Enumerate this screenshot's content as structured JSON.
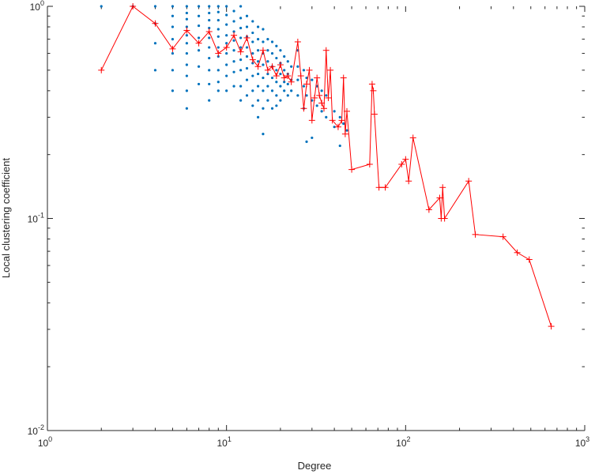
{
  "chart_data": {
    "type": "scatter",
    "xlabel": "Degree",
    "ylabel": "Local clustering coefficient",
    "xscale": "log",
    "yscale": "log",
    "xlim": [
      1,
      1000
    ],
    "ylim": [
      0.01,
      1
    ],
    "grid": false,
    "xticks": [
      {
        "base": "10",
        "exp": "0",
        "value": 1
      },
      {
        "base": "10",
        "exp": "1",
        "value": 10
      },
      {
        "base": "10",
        "exp": "2",
        "value": 100
      },
      {
        "base": "10",
        "exp": "3",
        "value": 1000
      }
    ],
    "yticks": [
      {
        "base": "10",
        "exp": "-2",
        "value": 0.01
      },
      {
        "base": "10",
        "exp": "-1",
        "value": 0.1
      },
      {
        "base": "10",
        "exp": "0",
        "value": 1
      }
    ],
    "colors": {
      "points": "#0072bd",
      "average": "#ff0000",
      "axis": "#262626"
    },
    "series": [
      {
        "marker": "dot",
        "points": [
          [
            2,
            1
          ],
          [
            3,
            1
          ],
          [
            4,
            1
          ],
          [
            4,
            0.83
          ],
          [
            4,
            0.67
          ],
          [
            4,
            0.5
          ],
          [
            5,
            1
          ],
          [
            5,
            0.9
          ],
          [
            5,
            0.8
          ],
          [
            5,
            0.7
          ],
          [
            5,
            0.6
          ],
          [
            5,
            0.5
          ],
          [
            5,
            0.4
          ],
          [
            6,
            1
          ],
          [
            6,
            0.93
          ],
          [
            6,
            0.87
          ],
          [
            6,
            0.8
          ],
          [
            6,
            0.73
          ],
          [
            6,
            0.67
          ],
          [
            6,
            0.6
          ],
          [
            6,
            0.53
          ],
          [
            6,
            0.47
          ],
          [
            6,
            0.4
          ],
          [
            6,
            0.33
          ],
          [
            7,
            1
          ],
          [
            7,
            0.9
          ],
          [
            7,
            0.81
          ],
          [
            7,
            0.71
          ],
          [
            7,
            0.62
          ],
          [
            7,
            0.52
          ],
          [
            7,
            0.43
          ],
          [
            8,
            1
          ],
          [
            8,
            0.93
          ],
          [
            8,
            0.86
          ],
          [
            8,
            0.79
          ],
          [
            8,
            0.71
          ],
          [
            8,
            0.64
          ],
          [
            8,
            0.57
          ],
          [
            8,
            0.5
          ],
          [
            8,
            0.43
          ],
          [
            8,
            0.36
          ],
          [
            9,
            1
          ],
          [
            9,
            0.94
          ],
          [
            9,
            0.86
          ],
          [
            9,
            0.78
          ],
          [
            9,
            0.72
          ],
          [
            9,
            0.64
          ],
          [
            9,
            0.58
          ],
          [
            9,
            0.5
          ],
          [
            9,
            0.44
          ],
          [
            9,
            0.4
          ],
          [
            10,
            1
          ],
          [
            10,
            0.91
          ],
          [
            10,
            0.82
          ],
          [
            10,
            0.73
          ],
          [
            10,
            0.67
          ],
          [
            10,
            0.6
          ],
          [
            10,
            0.53
          ],
          [
            10,
            0.47
          ],
          [
            10,
            0.4
          ],
          [
            11,
            0.95
          ],
          [
            11,
            0.85
          ],
          [
            11,
            0.76
          ],
          [
            11,
            0.69
          ],
          [
            11,
            0.62
          ],
          [
            11,
            0.55
          ],
          [
            11,
            0.49
          ],
          [
            11,
            0.42
          ],
          [
            12,
            1
          ],
          [
            12,
            0.88
          ],
          [
            12,
            0.79
          ],
          [
            12,
            0.71
          ],
          [
            12,
            0.64
          ],
          [
            12,
            0.56
          ],
          [
            12,
            0.5
          ],
          [
            12,
            0.42
          ],
          [
            12,
            0.36
          ],
          [
            13,
            0.9
          ],
          [
            13,
            0.8
          ],
          [
            13,
            0.72
          ],
          [
            13,
            0.64
          ],
          [
            13,
            0.58
          ],
          [
            13,
            0.51
          ],
          [
            13,
            0.45
          ],
          [
            13,
            0.38
          ],
          [
            14,
            0.85
          ],
          [
            14,
            0.75
          ],
          [
            14,
            0.68
          ],
          [
            14,
            0.6
          ],
          [
            14,
            0.54
          ],
          [
            14,
            0.47
          ],
          [
            14,
            0.4
          ],
          [
            14,
            0.34
          ],
          [
            15,
            0.8
          ],
          [
            15,
            0.7
          ],
          [
            15,
            0.62
          ],
          [
            15,
            0.55
          ],
          [
            15,
            0.48
          ],
          [
            15,
            0.42
          ],
          [
            15,
            0.36
          ],
          [
            15,
            0.3
          ],
          [
            16,
            0.78
          ],
          [
            16,
            0.68
          ],
          [
            16,
            0.6
          ],
          [
            16,
            0.53
          ],
          [
            16,
            0.46
          ],
          [
            16,
            0.4
          ],
          [
            16,
            0.33
          ],
          [
            16,
            0.25
          ],
          [
            17,
            0.7
          ],
          [
            17,
            0.62
          ],
          [
            17,
            0.55
          ],
          [
            17,
            0.48
          ],
          [
            17,
            0.42
          ],
          [
            17,
            0.36
          ],
          [
            18,
            0.68
          ],
          [
            18,
            0.6
          ],
          [
            18,
            0.52
          ],
          [
            18,
            0.46
          ],
          [
            18,
            0.4
          ],
          [
            18,
            0.33
          ],
          [
            19,
            0.65
          ],
          [
            19,
            0.57
          ],
          [
            19,
            0.5
          ],
          [
            19,
            0.44
          ],
          [
            19,
            0.38
          ],
          [
            19,
            0.34
          ],
          [
            20,
            0.62
          ],
          [
            20,
            0.54
          ],
          [
            20,
            0.48
          ],
          [
            20,
            0.42
          ],
          [
            20,
            0.36
          ],
          [
            21,
            0.58
          ],
          [
            21,
            0.5
          ],
          [
            21,
            0.44
          ],
          [
            21,
            0.4
          ],
          [
            22,
            0.55
          ],
          [
            22,
            0.48
          ],
          [
            22,
            0.43
          ],
          [
            22,
            0.38
          ],
          [
            23,
            0.52
          ],
          [
            23,
            0.45
          ],
          [
            23,
            0.4
          ],
          [
            25,
            0.62
          ],
          [
            25,
            0.52
          ],
          [
            25,
            0.45
          ],
          [
            25,
            0.38
          ],
          [
            27,
            0.5
          ],
          [
            27,
            0.42
          ],
          [
            27,
            0.33
          ],
          [
            28,
            0.46
          ],
          [
            28,
            0.38
          ],
          [
            28,
            0.23
          ],
          [
            30,
            0.45
          ],
          [
            30,
            0.36
          ],
          [
            30,
            0.24
          ],
          [
            32,
            0.42
          ],
          [
            32,
            0.34
          ],
          [
            34,
            0.4
          ],
          [
            34,
            0.32
          ],
          [
            36,
            0.38
          ],
          [
            36,
            0.3
          ],
          [
            40,
            0.32
          ],
          [
            40,
            0.27
          ],
          [
            43,
            0.3
          ],
          [
            43,
            0.22
          ],
          [
            45,
            0.28
          ],
          [
            47,
            0.26
          ]
        ]
      },
      {
        "marker": "plus",
        "line": true,
        "points": [
          [
            2,
            0.5
          ],
          [
            3,
            1
          ],
          [
            4,
            0.83
          ],
          [
            5,
            0.63
          ],
          [
            6,
            0.77
          ],
          [
            7,
            0.67
          ],
          [
            8,
            0.76
          ],
          [
            9,
            0.6
          ],
          [
            10,
            0.64
          ],
          [
            11,
            0.73
          ],
          [
            12,
            0.61
          ],
          [
            13,
            0.71
          ],
          [
            14,
            0.56
          ],
          [
            15,
            0.52
          ],
          [
            16,
            0.62
          ],
          [
            17,
            0.5
          ],
          [
            18,
            0.52
          ],
          [
            19,
            0.47
          ],
          [
            20,
            0.53
          ],
          [
            21,
            0.46
          ],
          [
            22,
            0.47
          ],
          [
            23,
            0.44
          ],
          [
            25,
            0.68
          ],
          [
            26,
            0.47
          ],
          [
            27,
            0.33
          ],
          [
            28,
            0.43
          ],
          [
            29,
            0.5
          ],
          [
            30,
            0.29
          ],
          [
            31,
            0.37
          ],
          [
            32,
            0.46
          ],
          [
            33,
            0.38
          ],
          [
            34,
            0.35
          ],
          [
            35,
            0.33
          ],
          [
            36,
            0.62
          ],
          [
            37,
            0.37
          ],
          [
            38,
            0.5
          ],
          [
            39,
            0.29
          ],
          [
            42,
            0.27
          ],
          [
            44,
            0.29
          ],
          [
            45,
            0.46
          ],
          [
            46,
            0.25
          ],
          [
            47,
            0.32
          ],
          [
            50,
            0.17
          ],
          [
            63,
            0.18
          ],
          [
            65,
            0.43
          ],
          [
            66,
            0.4
          ],
          [
            67,
            0.31
          ],
          [
            71,
            0.14
          ],
          [
            77,
            0.14
          ],
          [
            95,
            0.18
          ],
          [
            100,
            0.19
          ],
          [
            104,
            0.15
          ],
          [
            110,
            0.24
          ],
          [
            135,
            0.11
          ],
          [
            155,
            0.125
          ],
          [
            158,
            0.1
          ],
          [
            161,
            0.14
          ],
          [
            165,
            0.1
          ],
          [
            225,
            0.15
          ],
          [
            245,
            0.084
          ],
          [
            350,
            0.082
          ],
          [
            420,
            0.069
          ],
          [
            490,
            0.064
          ],
          [
            650,
            0.031
          ]
        ]
      }
    ]
  }
}
